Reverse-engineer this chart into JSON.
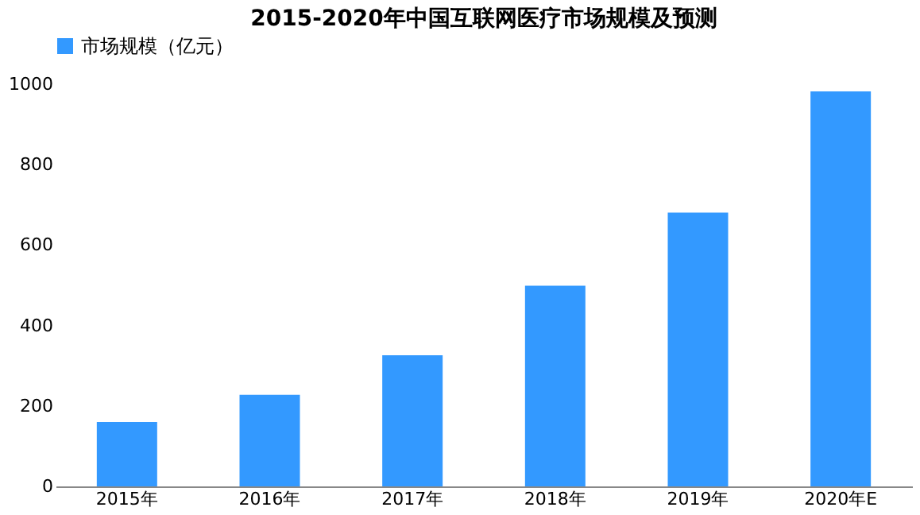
{
  "chart_data": {
    "type": "bar",
    "title": "2015-2020年中国互联网医疗市场规模及预测",
    "categories": [
      "2015年",
      "2016年",
      "2017年",
      "2018年",
      "2019年",
      "2020年E"
    ],
    "series": [
      {
        "name": "市场规模（亿元）",
        "color": "#3399ff",
        "values": [
          160,
          228,
          326,
          499,
          681,
          982
        ]
      }
    ],
    "ylim": [
      0,
      1000
    ],
    "yticks": [
      0,
      200,
      400,
      600,
      800,
      1000
    ],
    "grid": false,
    "legend": "top"
  }
}
